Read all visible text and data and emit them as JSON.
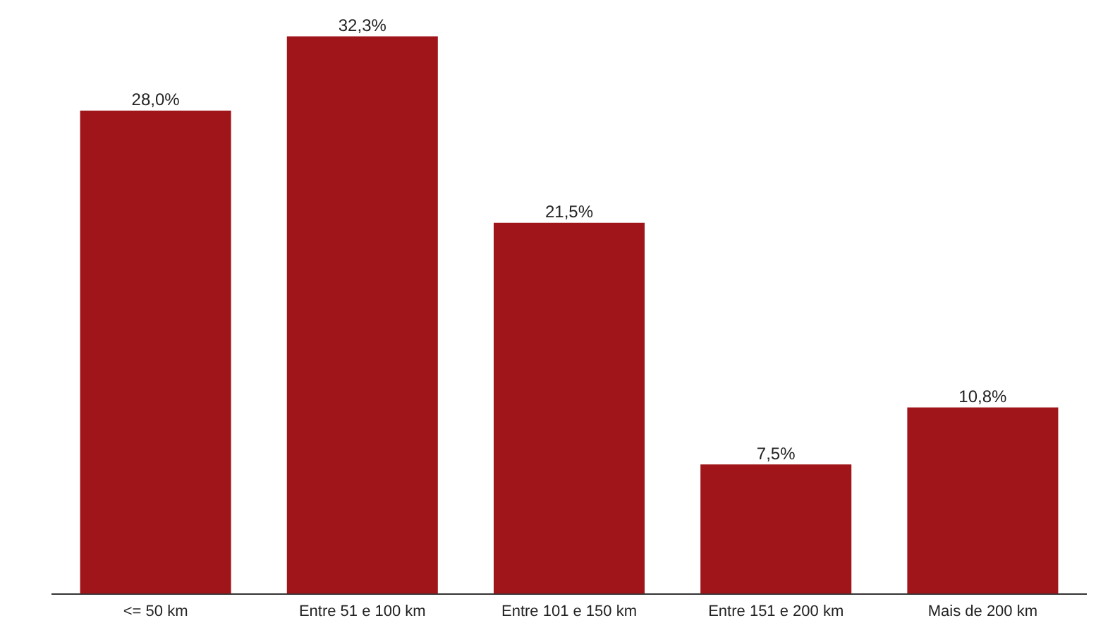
{
  "chart_data": {
    "type": "bar",
    "categories": [
      "<= 50 km",
      "Entre 51 e 100 km",
      "Entre 101 e 150 km",
      "Entre 151 e 200 km",
      "Mais de 200 km"
    ],
    "values": [
      28.0,
      32.3,
      21.5,
      7.5,
      10.8
    ],
    "value_labels": [
      "28,0%",
      "32,3%",
      "21,5%",
      "7,5%",
      "10,8%"
    ],
    "color": "#a0151a",
    "grid": false,
    "legend": false
  }
}
